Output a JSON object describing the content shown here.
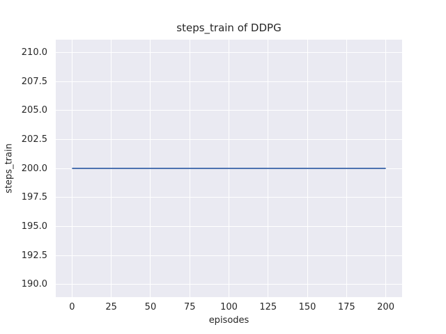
{
  "figure": {
    "colors": {
      "figure_background": "#ffffff",
      "plot_background": "#eaeaf2",
      "gridline": "#ffffff",
      "text": "#262626",
      "line": "#4c72b0"
    }
  },
  "chart_data": {
    "type": "line",
    "title": "steps_train of DDPG",
    "xlabel": "episodes",
    "ylabel": "steps_train",
    "x_ticks": [
      "0",
      "25",
      "50",
      "75",
      "100",
      "125",
      "150",
      "175",
      "200"
    ],
    "y_ticks": [
      "190.0",
      "192.5",
      "195.0",
      "197.5",
      "200.0",
      "202.5",
      "205.0",
      "207.5",
      "210.0"
    ],
    "xlim": [
      -10.4,
      210.4
    ],
    "ylim": [
      188.9,
      211.1
    ],
    "grid": true,
    "legend": false,
    "series": [
      {
        "name": "steps_train",
        "color": "#4c72b0",
        "x": [
          0,
          200
        ],
        "y": [
          200,
          200
        ]
      }
    ]
  }
}
